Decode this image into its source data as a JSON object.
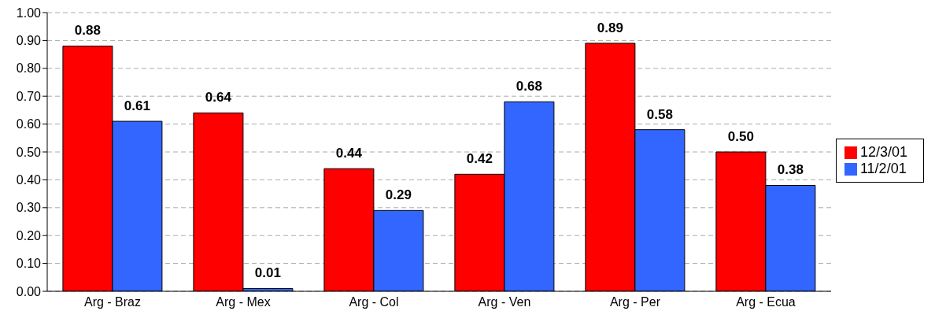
{
  "chart_data": {
    "type": "bar",
    "categories": [
      "Arg - Braz",
      "Arg - Mex",
      "Arg - Col",
      "Arg - Ven",
      "Arg - Per",
      "Arg - Ecua"
    ],
    "series": [
      {
        "name": "12/3/01",
        "color": "#ff0000",
        "values": [
          0.88,
          0.64,
          0.44,
          0.42,
          0.89,
          0.5
        ],
        "value_labels": [
          "0.88",
          "0.64",
          "0.44",
          "0.42",
          "0.89",
          "0.50"
        ]
      },
      {
        "name": "11/2/01",
        "color": "#3366ff",
        "values": [
          0.61,
          0.01,
          0.29,
          0.68,
          0.58,
          0.38
        ],
        "value_labels": [
          "0.61",
          "0.01",
          "0.29",
          "0.68",
          "0.58",
          "0.38"
        ]
      }
    ],
    "ylim": [
      0,
      1
    ],
    "yticks": [
      {
        "value": 0,
        "label": "0.00"
      },
      {
        "value": 0.1,
        "label": "0.10"
      },
      {
        "value": 0.2,
        "label": "0.20"
      },
      {
        "value": 0.3,
        "label": "0.30"
      },
      {
        "value": 0.4,
        "label": "0.40"
      },
      {
        "value": 0.5,
        "label": "0.50"
      },
      {
        "value": 0.6,
        "label": "0.60"
      },
      {
        "value": 0.7,
        "label": "0.70"
      },
      {
        "value": 0.8,
        "label": "0.80"
      },
      {
        "value": 0.9,
        "label": "0.90"
      },
      {
        "value": 1,
        "label": "1.00"
      }
    ],
    "grid": "y",
    "legend": "right"
  }
}
